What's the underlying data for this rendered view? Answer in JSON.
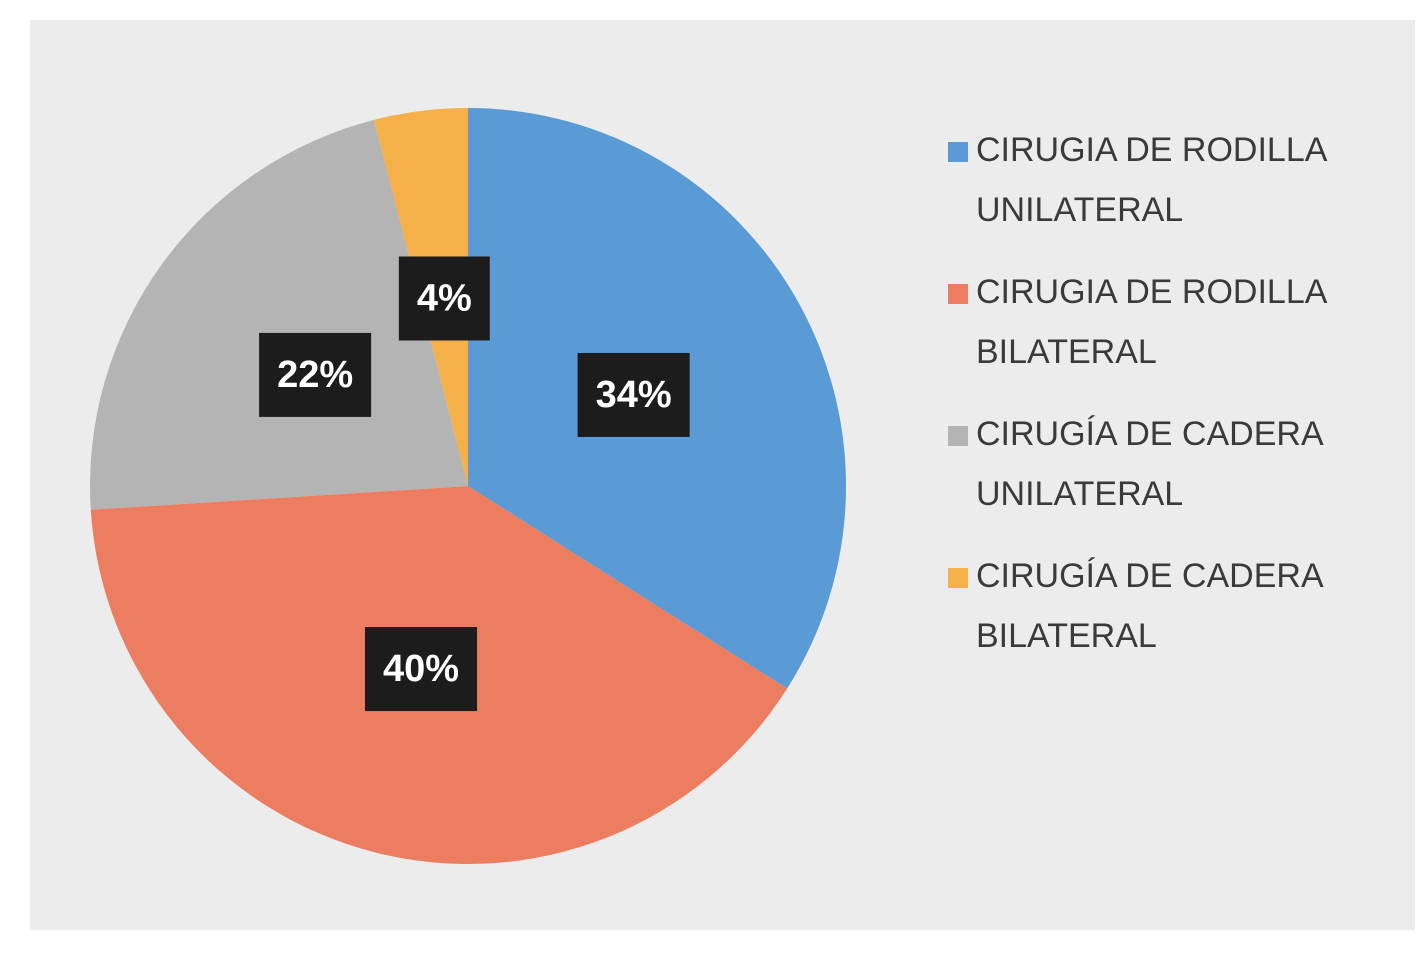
{
  "chart_data": {
    "type": "pie",
    "categories": [
      "CIRUGIA DE RODILLA UNILATERAL",
      "CIRUGIA DE RODILLA BILATERAL",
      "CIRUGÍA DE CADERA UNILATERAL",
      "CIRUGÍA DE CADERA BILATERAL"
    ],
    "values": [
      34,
      40,
      22,
      4
    ],
    "value_labels": [
      "34%",
      "40%",
      "22%",
      "4%"
    ],
    "colors": [
      "#5b9bd5",
      "#ed7d61",
      "#b4b4b4",
      "#f5b04a"
    ]
  }
}
